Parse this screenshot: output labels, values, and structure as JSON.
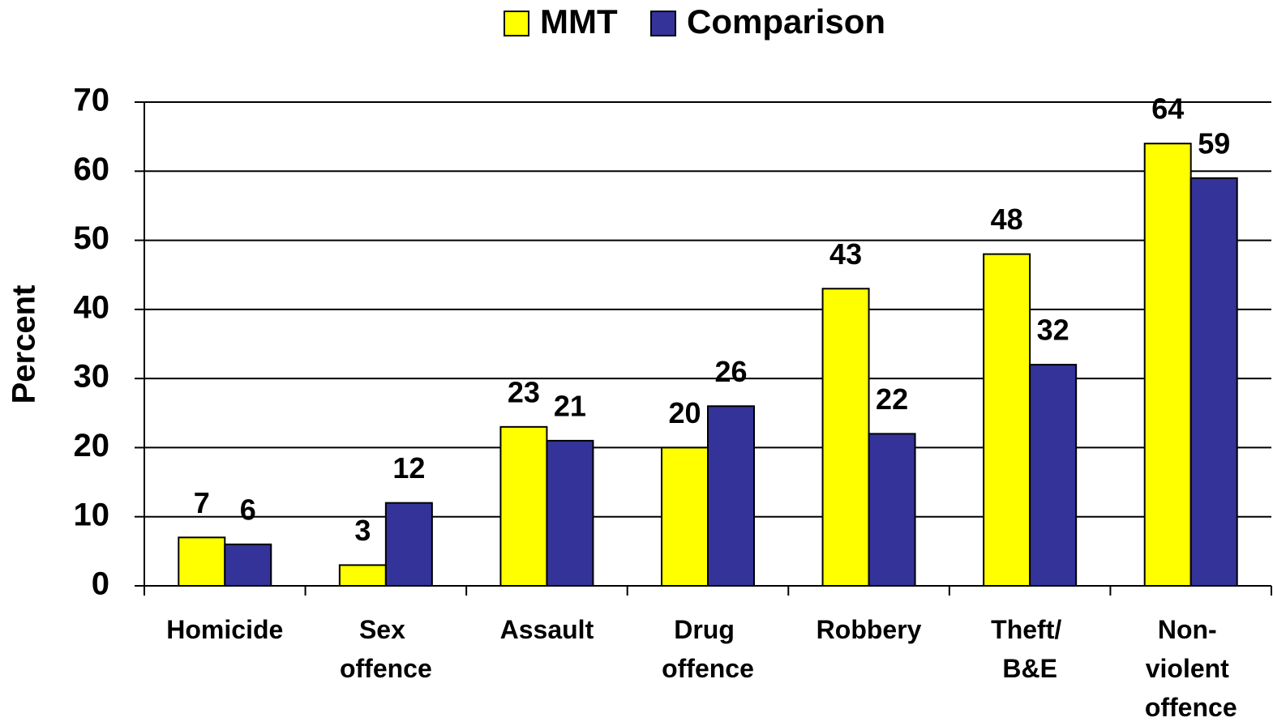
{
  "chart_data": {
    "type": "bar",
    "y_label": "Percent",
    "categories": [
      "Homicide",
      "Sex offence",
      "Assault",
      "Drug offence",
      "Robbery",
      "Theft/ B&E",
      "Non- violent offence"
    ],
    "series": [
      {
        "name": "MMT",
        "color": "#ffff00",
        "values": [
          7,
          3,
          23,
          20,
          43,
          48,
          64
        ]
      },
      {
        "name": "Comparison",
        "color": "#333399",
        "values": [
          6,
          12,
          21,
          26,
          22,
          32,
          59
        ]
      }
    ],
    "ylim": [
      0,
      70
    ],
    "yticks": [
      0,
      10,
      20,
      30,
      40,
      50,
      60,
      70
    ],
    "grid": true,
    "legend": "top"
  }
}
